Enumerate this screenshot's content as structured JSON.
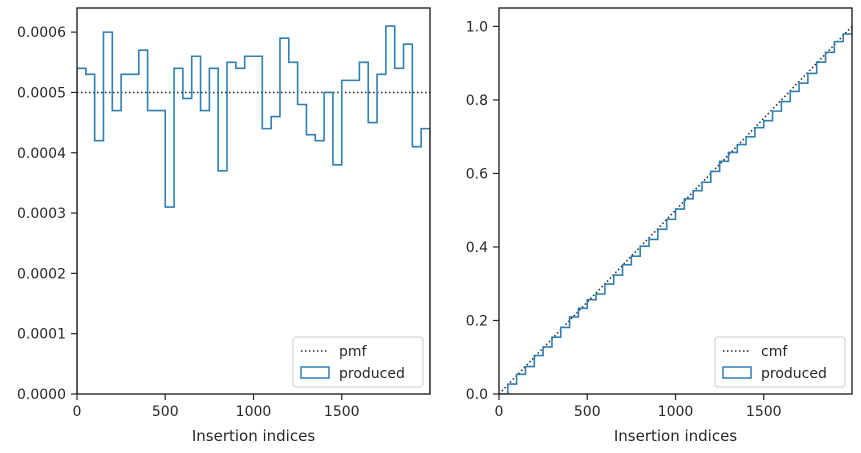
{
  "chart_data": [
    {
      "type": "step",
      "xlabel": "Insertion indices",
      "ylabel": "",
      "xlim": [
        0,
        2000
      ],
      "ylim": [
        0,
        0.00064
      ],
      "xticks": [
        0,
        500,
        1000,
        1500
      ],
      "xtick_labels": [
        "0",
        "500",
        "1000",
        "1500"
      ],
      "yticks": [
        0,
        0.0001,
        0.0002,
        0.0003,
        0.0004,
        0.0005,
        0.0006
      ],
      "ytick_labels": [
        "0.0000",
        "0.0001",
        "0.0002",
        "0.0003",
        "0.0004",
        "0.0005",
        "0.0006"
      ],
      "grid": false,
      "legend_position": "lower right",
      "series": [
        {
          "name": "pmf",
          "style": "dotted",
          "color": "#222222",
          "x": [
            0,
            2000
          ],
          "values": [
            0.0005,
            0.0005
          ]
        },
        {
          "name": "produced",
          "style": "step-histogram",
          "color": "#2f7fb3",
          "bin_edges": [
            0,
            50,
            100,
            150,
            200,
            250,
            300,
            350,
            400,
            450,
            500,
            550,
            600,
            650,
            700,
            750,
            800,
            850,
            900,
            950,
            1000,
            1050,
            1100,
            1150,
            1200,
            1250,
            1300,
            1350,
            1400,
            1450,
            1500,
            1550,
            1600,
            1650,
            1700,
            1750,
            1800,
            1850,
            1900,
            1950,
            2000
          ],
          "values": [
            0.00054,
            0.00053,
            0.00042,
            0.0006,
            0.00047,
            0.00053,
            0.00053,
            0.00057,
            0.00047,
            0.00047,
            0.00031,
            0.00054,
            0.00049,
            0.00056,
            0.00047,
            0.00054,
            0.00037,
            0.00055,
            0.00054,
            0.00056,
            0.00056,
            0.00044,
            0.00046,
            0.00059,
            0.00055,
            0.00048,
            0.00043,
            0.00042,
            0.0005,
            0.00038,
            0.00052,
            0.00052,
            0.00055,
            0.00045,
            0.00053,
            0.00061,
            0.00054,
            0.00058,
            0.00041,
            0.00044
          ]
        }
      ]
    },
    {
      "type": "line",
      "xlabel": "Insertion indices",
      "ylabel": "",
      "xlim": [
        0,
        2000
      ],
      "ylim": [
        0,
        1.05
      ],
      "xticks": [
        0,
        500,
        1000,
        1500
      ],
      "xtick_labels": [
        "0",
        "500",
        "1000",
        "1500"
      ],
      "yticks": [
        0,
        0.2,
        0.4,
        0.6,
        0.8,
        1.0
      ],
      "ytick_labels": [
        "0.0",
        "0.2",
        "0.4",
        "0.6",
        "0.8",
        "1.0"
      ],
      "grid": false,
      "legend_position": "lower right",
      "series": [
        {
          "name": "cmf",
          "style": "dotted",
          "color": "#222222",
          "x": [
            0,
            2000
          ],
          "values": [
            0,
            1.0
          ]
        },
        {
          "name": "produced",
          "style": "step-cumulative",
          "color": "#2f7fb3",
          "x": [
            0,
            50,
            100,
            150,
            200,
            250,
            300,
            350,
            400,
            450,
            500,
            550,
            600,
            650,
            700,
            750,
            800,
            850,
            900,
            950,
            1000,
            1050,
            1100,
            1150,
            1200,
            1250,
            1300,
            1350,
            1400,
            1450,
            1500,
            1550,
            1600,
            1650,
            1700,
            1750,
            1800,
            1850,
            1900,
            1950,
            2000
          ],
          "values": [
            0,
            0.027,
            0.0535,
            0.0745,
            0.1045,
            0.128,
            0.1545,
            0.181,
            0.2095,
            0.233,
            0.2565,
            0.272,
            0.299,
            0.3235,
            0.3515,
            0.375,
            0.402,
            0.4205,
            0.448,
            0.475,
            0.503,
            0.531,
            0.553,
            0.576,
            0.6055,
            0.633,
            0.657,
            0.6785,
            0.6995,
            0.7245,
            0.7435,
            0.7695,
            0.7955,
            0.823,
            0.8455,
            0.872,
            0.9025,
            0.9295,
            0.9585,
            0.979,
            1.0
          ]
        }
      ]
    }
  ]
}
